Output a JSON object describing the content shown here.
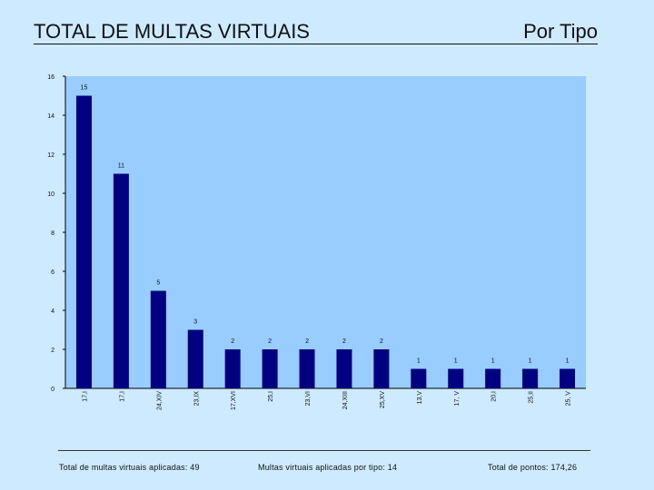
{
  "header": {
    "title": "TOTAL DE MULTAS VIRTUAIS",
    "subtitle": "Por Tipo"
  },
  "footer": {
    "total_multas": "Total de multas virtuais aplicadas: 49",
    "multas_por_tipo": "Multas virtuais aplicadas por tipo: 14",
    "total_pontos": "Total de pontos: 174,26"
  },
  "chart_data": {
    "type": "bar",
    "title": "",
    "xlabel": "",
    "ylabel": "",
    "ylim": [
      0,
      16
    ],
    "yticks": [
      0,
      2,
      4,
      6,
      8,
      10,
      12,
      14,
      16
    ],
    "categories": [
      "17,I",
      "17,I",
      "24,XIV",
      "23,IX",
      "17,XVI",
      "25,I",
      "23,VI",
      "24,XIII",
      "25,XV",
      "13,V",
      "17, V",
      "20,I",
      "25,II",
      "25, V"
    ],
    "values": [
      15,
      11,
      5,
      3,
      2,
      2,
      2,
      2,
      2,
      1,
      1,
      1,
      1,
      1
    ],
    "colors": {
      "plot_bg": "#99ccff",
      "bar": "#000080",
      "axis": "#000000"
    }
  }
}
